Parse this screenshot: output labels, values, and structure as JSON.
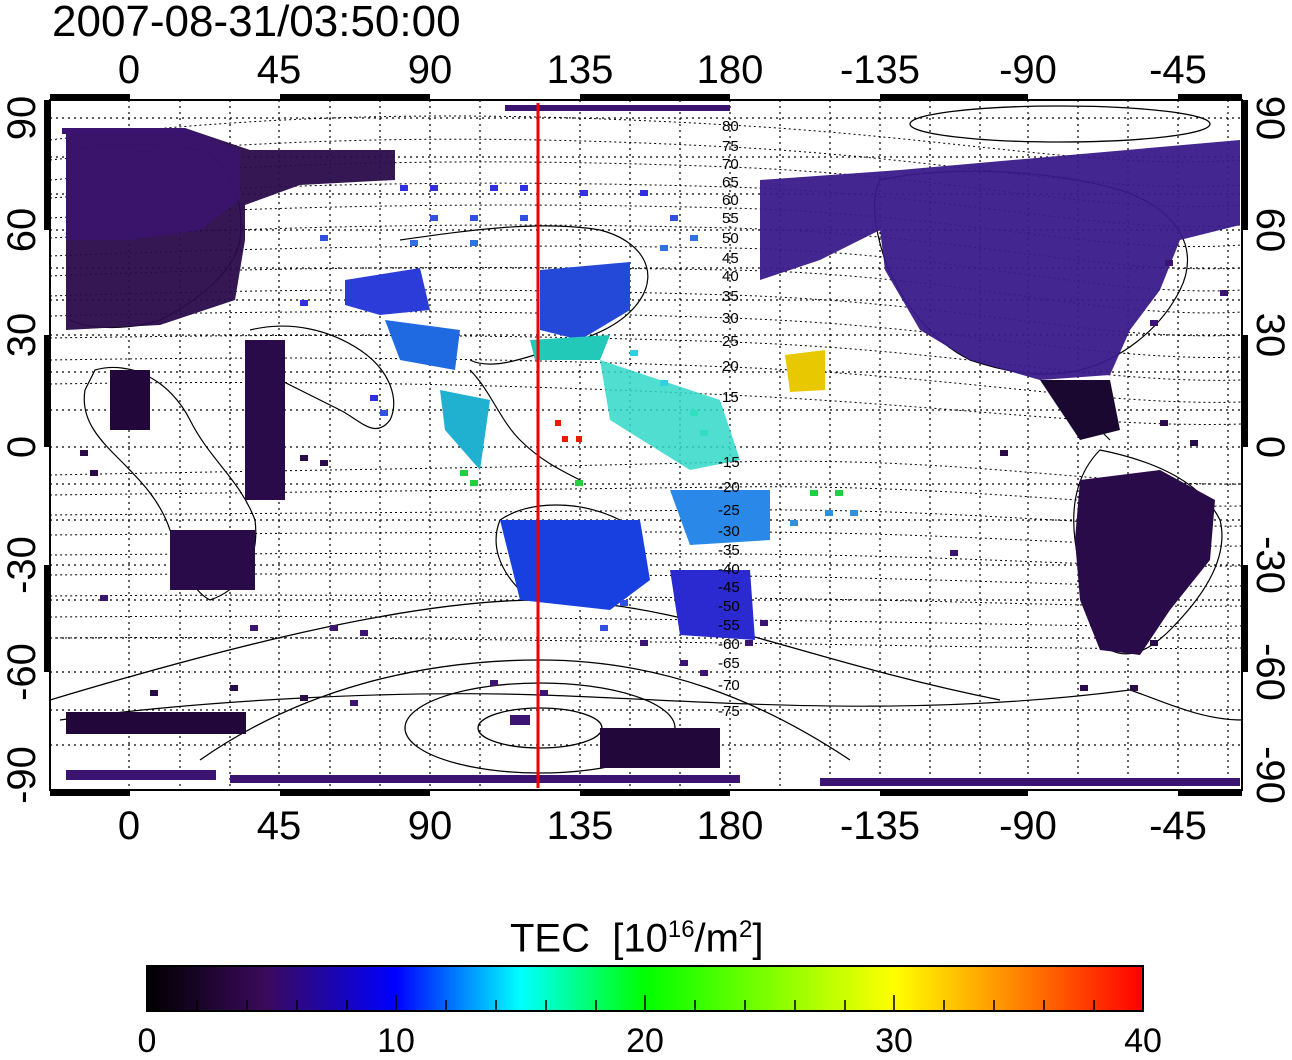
{
  "title": "2007-08-31/03:50:00",
  "map": {
    "longitude_ticks": [
      "0",
      "45",
      "90",
      "135",
      "180",
      "-135",
      "-90",
      "-45"
    ],
    "latitude_ticks": [
      "90",
      "60",
      "30",
      "0",
      "-30",
      "-60",
      "-90"
    ],
    "meridian_line_color": "#ee0000",
    "meridian_longitude": 123,
    "contour_labels": [
      "80",
      "75",
      "70",
      "65",
      "60",
      "55",
      "50",
      "45",
      "40",
      "35",
      "30",
      "25",
      "20",
      "15",
      "-15",
      "-20",
      "-25",
      "-30",
      "-35",
      "-40",
      "-45",
      "-50",
      "-55",
      "-60",
      "-65",
      "-70",
      "-75"
    ]
  },
  "colorbar": {
    "title": "TEC",
    "unit_base": "[10",
    "unit_exp1": "16",
    "unit_mid": "/m",
    "unit_exp2": "2",
    "unit_end": "]",
    "ticks": [
      "0",
      "10",
      "20",
      "30",
      "40"
    ],
    "colors": [
      "#000000",
      "#3a0a5c",
      "#0000ff",
      "#00ffff",
      "#00ff00",
      "#ffff00",
      "#ff8800",
      "#ff0000"
    ]
  }
}
